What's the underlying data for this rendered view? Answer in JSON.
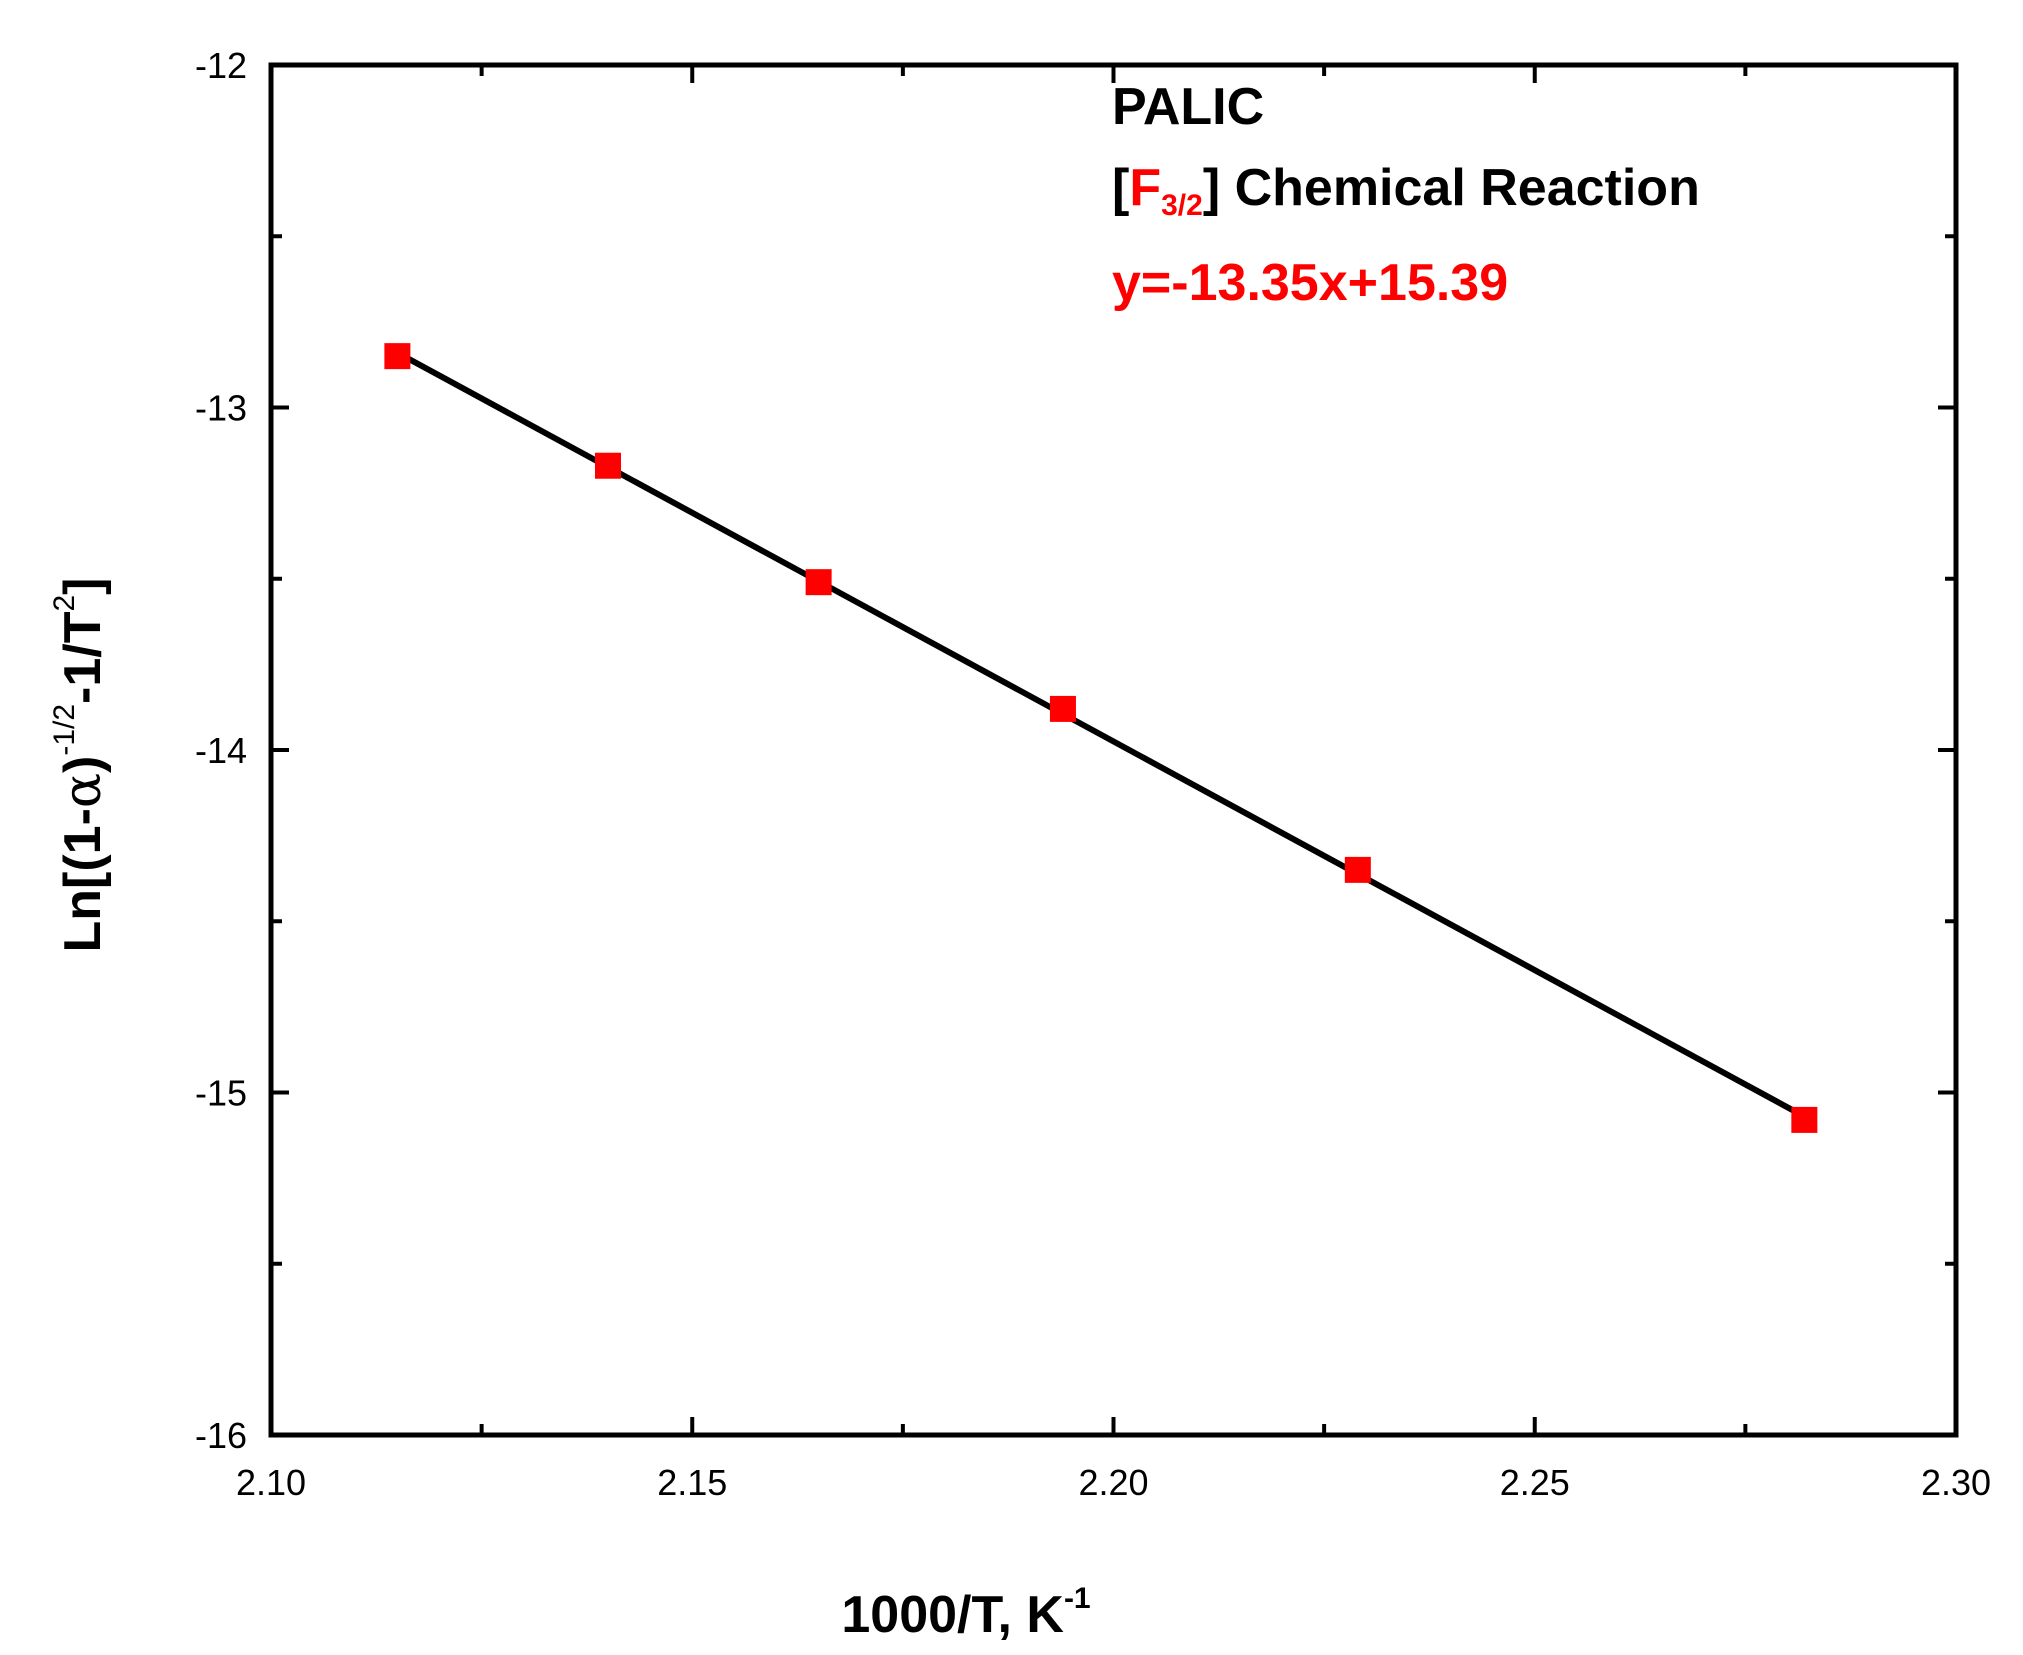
{
  "chart_data": {
    "type": "scatter",
    "title": "",
    "xlabel": {
      "base": "1000/T, K",
      "sup": "-1"
    },
    "ylabel": {
      "p1": "Ln[(1-",
      "alpha": "α",
      "p2": ")",
      "sup1": "-1/2",
      "p3": "-1/T",
      "sup2": "2",
      "p4": "]"
    },
    "xlim": [
      2.1,
      2.3
    ],
    "ylim": [
      -16,
      -12
    ],
    "x_ticks": [
      2.1,
      2.15,
      2.2,
      2.25,
      2.3
    ],
    "x_tick_labels": [
      "2.10",
      "2.15",
      "2.20",
      "2.25",
      "2.30"
    ],
    "y_ticks": [
      -16,
      -15,
      -14,
      -13,
      -12
    ],
    "y_tick_labels": [
      "-16",
      "-15",
      "-14",
      "-13",
      "-12"
    ],
    "x_minor_ticks": [
      2.125,
      2.175,
      2.225,
      2.275
    ],
    "y_minor_ticks": [
      -15.5,
      -14.5,
      -13.5,
      -12.5
    ],
    "grid": false,
    "series": [
      {
        "kind": "scatter",
        "marker": "square",
        "color": "#ff0000",
        "x": [
          2.115,
          2.14,
          2.165,
          2.194,
          2.229,
          2.282
        ],
        "y": [
          -12.85,
          -13.17,
          -13.51,
          -13.88,
          -14.35,
          -15.08
        ]
      },
      {
        "kind": "line",
        "color": "#000000",
        "x": [
          2.115,
          2.282
        ],
        "y": [
          -12.84,
          -15.07
        ]
      }
    ],
    "annotations": {
      "line1": "PALIC",
      "line2_open": "[",
      "line2_F": "F",
      "line2_sub": "3/2",
      "line2_close": "] Chemical Reaction",
      "line3": "y=-13.35x+15.39",
      "accent_color": "#ff0000"
    }
  }
}
